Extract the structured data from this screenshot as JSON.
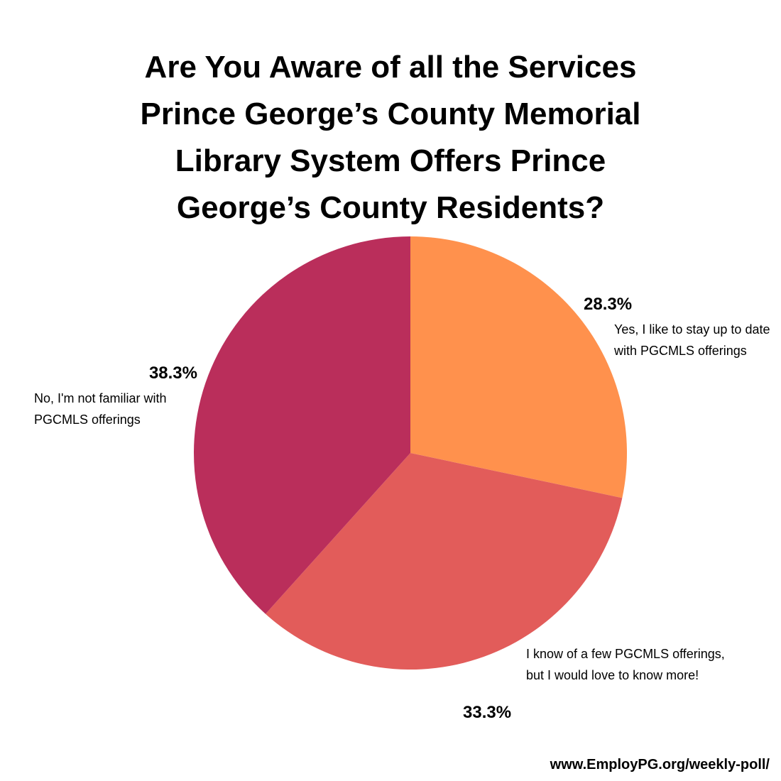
{
  "chart_data": {
    "type": "pie",
    "title": "Are You Aware of all the Services Prince George’s County Memorial Library System Offers Prince George’s County Residents?",
    "categories": [
      "Yes, I like to stay up to date with PGCMLS offerings",
      "I know of a few PGCMLS offerings, but I would love to know more!",
      "No, I'm not familiar with PGCMLS offerings"
    ],
    "values": [
      28.3,
      33.3,
      38.3
    ],
    "value_labels": [
      "28.3%",
      "33.3%",
      "38.3%"
    ],
    "colors": [
      "#ff914d",
      "#e25c5a",
      "#ba2e5b"
    ],
    "source": "www.EmployPG.org/weekly-poll/"
  }
}
